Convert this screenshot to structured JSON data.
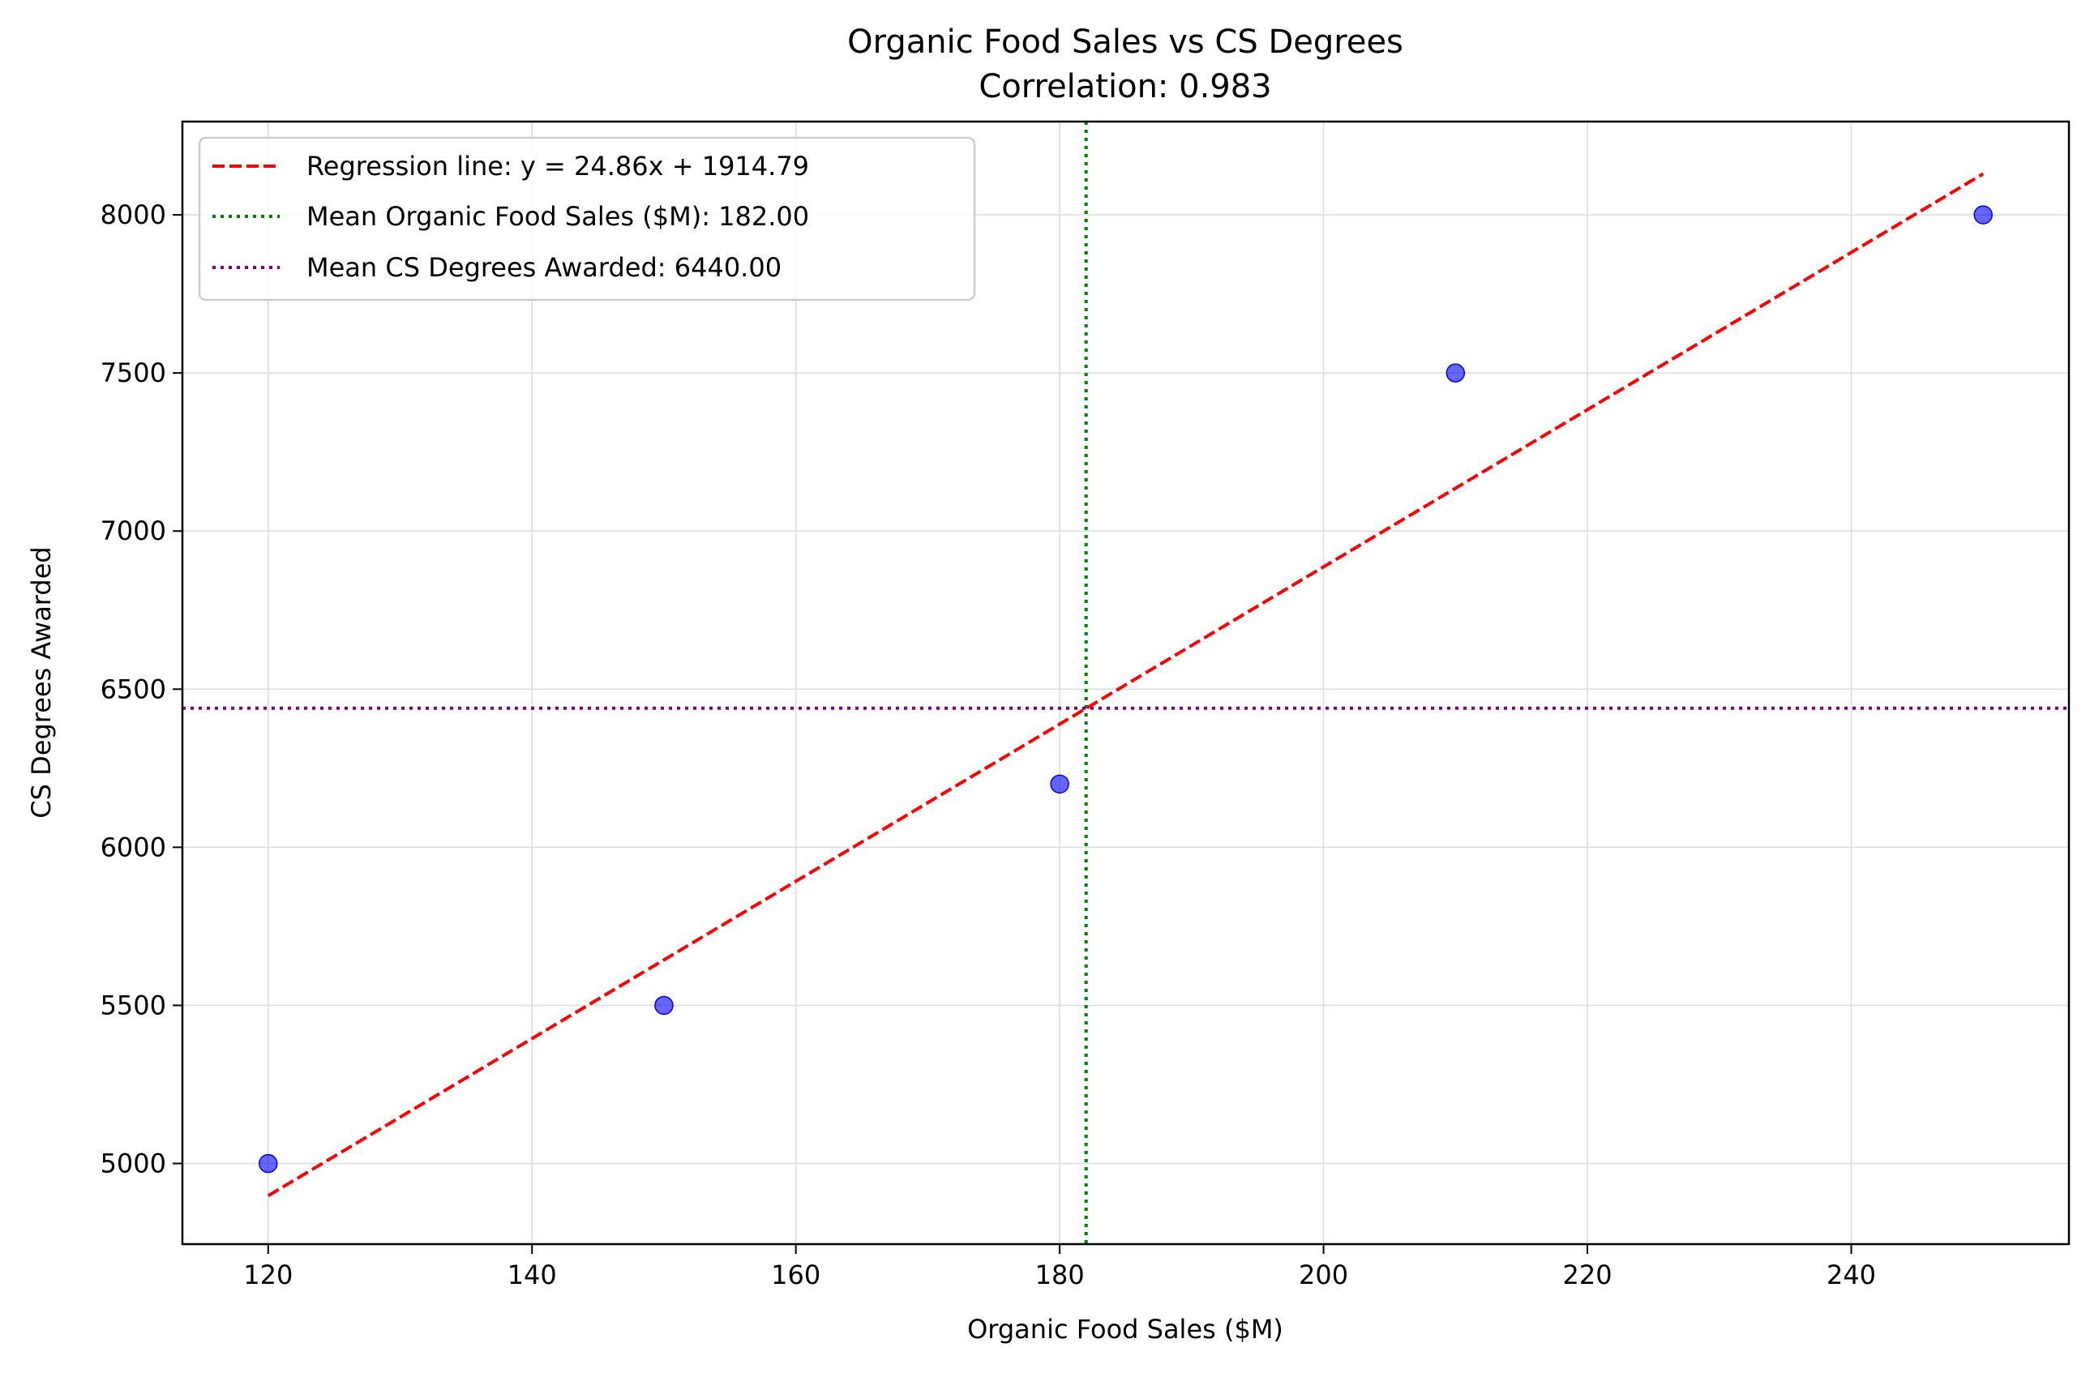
{
  "chart_data": {
    "type": "scatter",
    "title": "Organic Food Sales vs CS Degrees",
    "subtitle": "Correlation: 0.983",
    "xlabel": "Organic Food Sales ($M)",
    "ylabel": "CS Degrees Awarded",
    "xlim": [
      113.5,
      256.5
    ],
    "ylim": [
      4745,
      8295
    ],
    "xticks": [
      120,
      140,
      160,
      180,
      200,
      220,
      240
    ],
    "yticks": [
      5000,
      5500,
      6000,
      6500,
      7000,
      7500,
      8000
    ],
    "grid": true,
    "legend_position": "upper left",
    "points": {
      "x": [
        120,
        150,
        180,
        210,
        250
      ],
      "y": [
        5000,
        5500,
        6200,
        7500,
        8000
      ],
      "color": "#0000ff"
    },
    "regression": {
      "slope": 24.86,
      "intercept": 1914.79,
      "x_range": [
        120,
        250
      ],
      "color": "#ff0000",
      "label": "Regression line: y = 24.86x + 1914.79"
    },
    "mean_x": {
      "value": 182.0,
      "color": "#008000",
      "label": "Mean Organic Food Sales ($M): 182.00"
    },
    "mean_y": {
      "value": 6440.0,
      "color": "#800080",
      "label": "Mean CS Degrees Awarded: 6440.00"
    }
  }
}
